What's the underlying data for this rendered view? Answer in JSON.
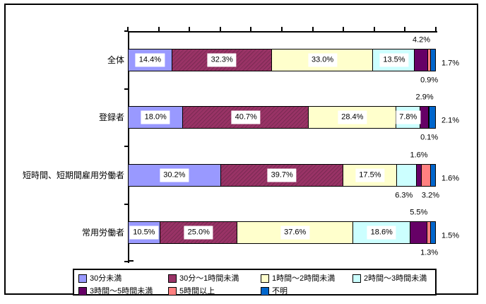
{
  "chart_data": {
    "type": "bar",
    "orientation": "horizontal",
    "stacked": true,
    "unit": "%",
    "title": "",
    "xlabel": "",
    "ylabel": "",
    "xlim": [
      0,
      100
    ],
    "tick_interval": 10,
    "gridlines": false,
    "legend_position": "bottom",
    "categories": [
      "全体",
      "登録者",
      "短時間、短期間雇用労働者",
      "常用労働者"
    ],
    "series": [
      {
        "name": "30分未満",
        "color": "#9999FF",
        "hatch": false,
        "values": [
          14.4,
          18.0,
          30.2,
          10.5
        ],
        "placements": [
          "inside",
          "inside",
          "inside",
          "inside"
        ]
      },
      {
        "name": "30分〜1時間未満",
        "color": "#993366",
        "hatch": true,
        "values": [
          32.3,
          40.7,
          39.7,
          25.0
        ],
        "placements": [
          "inside",
          "inside",
          "inside",
          "inside"
        ]
      },
      {
        "name": "1時間〜2時間未満",
        "color": "#FFFFCC",
        "hatch": false,
        "values": [
          33.0,
          28.4,
          17.5,
          37.6
        ],
        "placements": [
          "inside",
          "inside",
          "inside",
          "inside"
        ]
      },
      {
        "name": "2時間〜3時間未満",
        "color": "#CCFFFF",
        "hatch": false,
        "values": [
          13.5,
          7.8,
          6.3,
          18.6
        ],
        "placements": [
          "inside",
          "inside",
          "below",
          "inside"
        ]
      },
      {
        "name": "3時間〜5時間未満",
        "color": "#660066",
        "hatch": false,
        "values": [
          4.2,
          2.9,
          1.6,
          5.5
        ],
        "placements": [
          "above",
          "above",
          "above",
          "above"
        ]
      },
      {
        "name": "5時間以上",
        "color": "#FF8080",
        "hatch": false,
        "values": [
          0.9,
          0.1,
          3.2,
          1.3
        ],
        "placements": [
          "below",
          "below",
          "below",
          "below"
        ]
      },
      {
        "name": "不明",
        "color": "#0066CC",
        "hatch": false,
        "values": [
          1.7,
          2.1,
          1.6,
          1.5
        ],
        "placements": [
          "right",
          "right",
          "right",
          "right"
        ]
      }
    ],
    "data_labels": {
      "format": "0.0%",
      "inside_background": "#FFFFFF",
      "text_color": "#000000"
    },
    "legend_rows": [
      [
        0,
        1,
        2,
        3
      ],
      [
        4,
        5,
        6
      ]
    ]
  },
  "colors": {
    "background": "#FFFFFF",
    "border": "#000000"
  }
}
